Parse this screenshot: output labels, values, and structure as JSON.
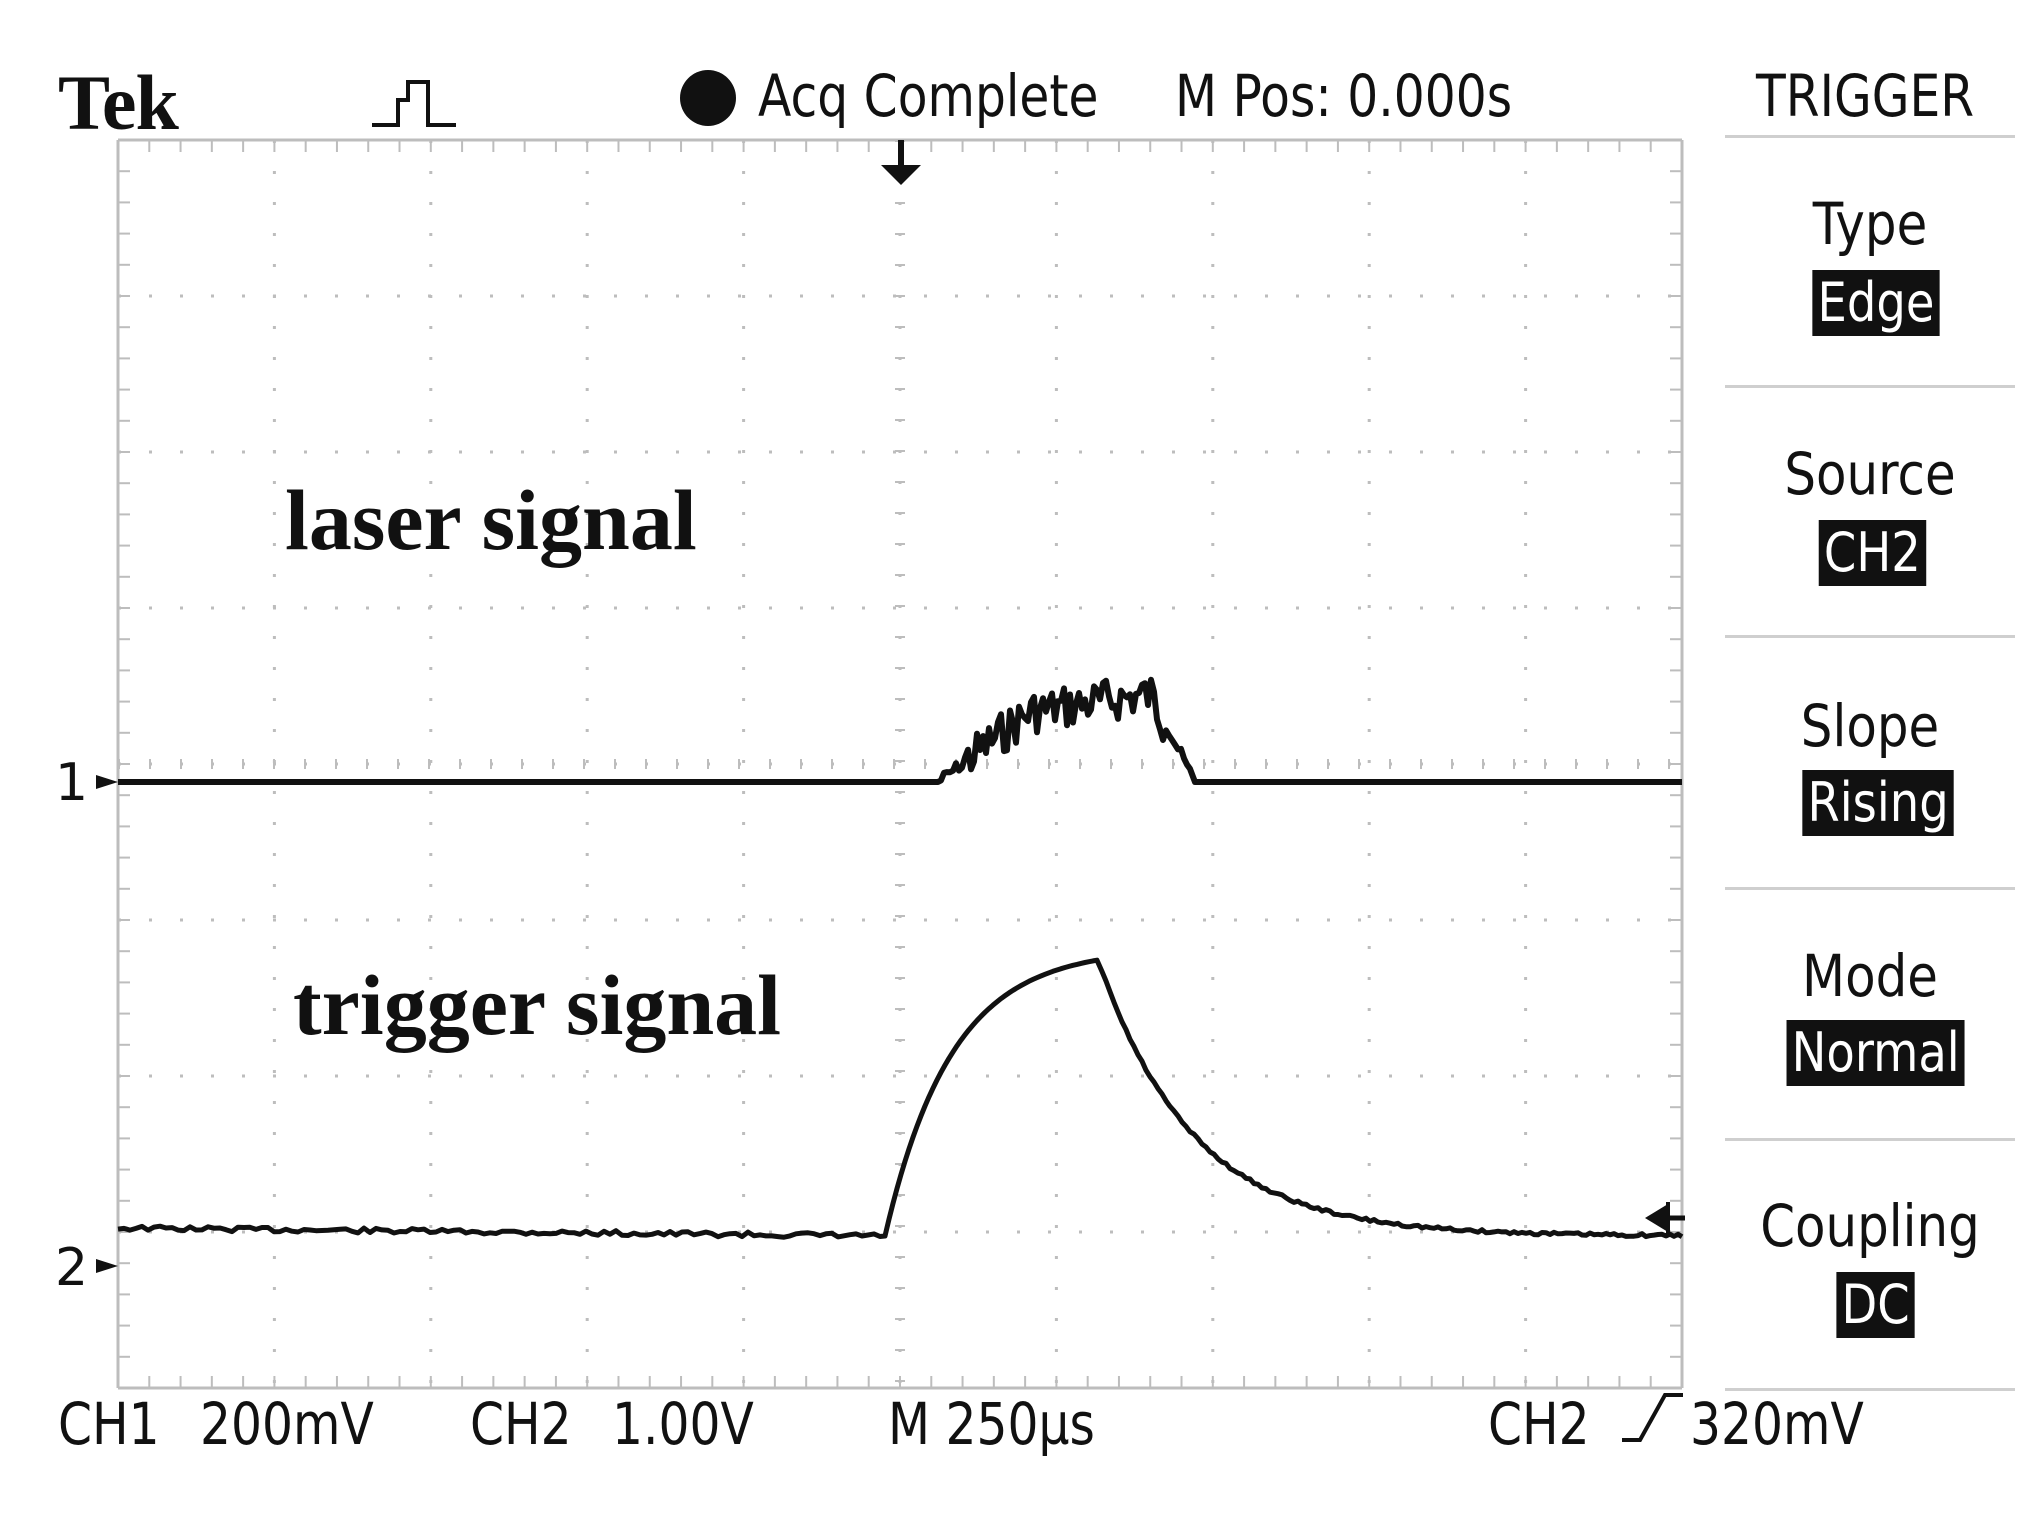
{
  "header": {
    "brand": "Tek",
    "acquisition_status": "Acq Complete",
    "position": "M Pos: 0.000s"
  },
  "trigger_menu": {
    "title": "TRIGGER",
    "items": [
      {
        "label": "Type",
        "value": "Edge"
      },
      {
        "label": "Source",
        "value": "CH2"
      },
      {
        "label": "Slope",
        "value": "Rising"
      },
      {
        "label": "Mode",
        "value": "Normal"
      },
      {
        "label": "Coupling",
        "value": "DC"
      }
    ]
  },
  "channels": [
    {
      "marker": "1",
      "annotation": "laser signal"
    },
    {
      "marker": "2",
      "annotation": "trigger signal"
    }
  ],
  "footer": {
    "ch1_label": "CH1",
    "ch1_scale": "200mV",
    "ch2_label": "CH2",
    "ch2_scale": "1.00V",
    "timebase": "M 250µs",
    "trigger_source": "CH2",
    "trigger_level": "320mV"
  },
  "colors": {
    "trace": "#111111",
    "grid": "#bdbdbd",
    "background": "#ffffff"
  },
  "icons": [
    "acquisition-mode-icon",
    "trigger-position-icon",
    "trigger-level-icon",
    "rising-slope-icon"
  ]
}
